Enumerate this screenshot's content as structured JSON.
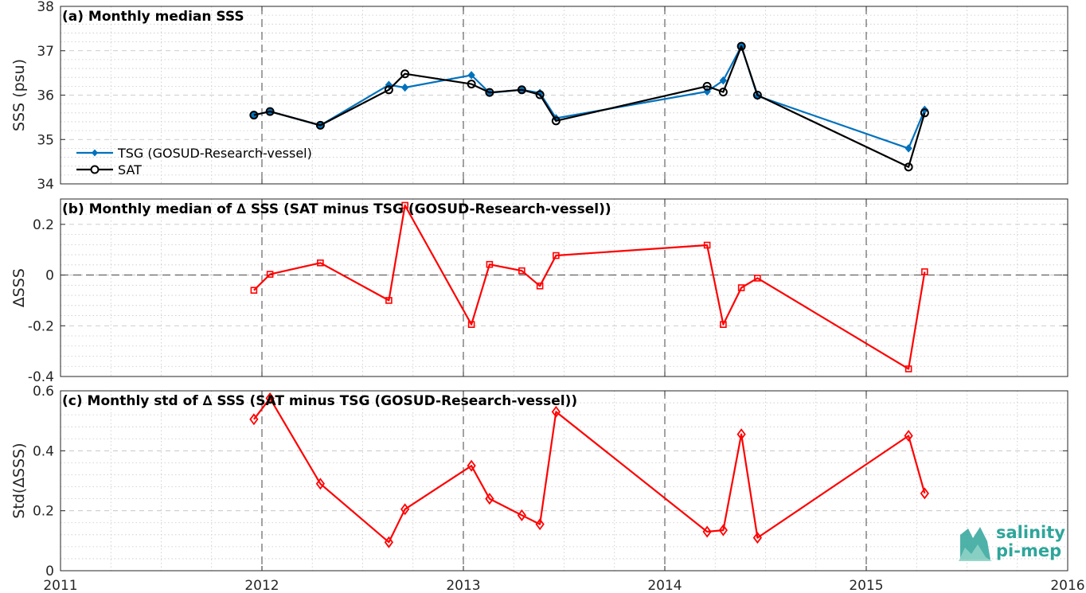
{
  "logo": {
    "line1": "salinity",
    "line2": "pi-mep",
    "color": "#2fa59a"
  },
  "x_ticks": [
    "2011",
    "2012",
    "2013",
    "2014",
    "2015",
    "2016"
  ],
  "chart_data": [
    {
      "type": "line",
      "title": "(a) Monthly median SSS",
      "ylabel": "SSS (psu)",
      "xlim": [
        2011,
        2016
      ],
      "ylim": [
        34,
        38
      ],
      "yticks": [
        34,
        35,
        36,
        37,
        38
      ],
      "ytick_labels": [
        "34",
        "35",
        "36",
        "37",
        "38"
      ],
      "grid": true,
      "legend": "middle-left",
      "series": [
        {
          "name": "TSG (GOSUD-Research-vessel)",
          "color": "#0072BD",
          "marker": "diamond-filled",
          "x": [
            2011.96,
            2012.04,
            2012.29,
            2012.63,
            2012.71,
            2013.04,
            2013.13,
            2013.29,
            2013.38,
            2013.46,
            2014.21,
            2014.29,
            2014.38,
            2014.46,
            2015.21,
            2015.29
          ],
          "y": [
            35.55,
            35.63,
            35.32,
            36.23,
            36.17,
            36.45,
            36.05,
            36.12,
            36.05,
            35.48,
            36.08,
            36.33,
            37.1,
            35.98,
            34.8,
            35.67
          ]
        },
        {
          "name": "SAT",
          "color": "#000000",
          "marker": "circle-open",
          "x": [
            2011.96,
            2012.04,
            2012.29,
            2012.63,
            2012.71,
            2013.04,
            2013.13,
            2013.29,
            2013.38,
            2013.46,
            2014.21,
            2014.29,
            2014.38,
            2014.46,
            2015.21,
            2015.29
          ],
          "y": [
            35.55,
            35.63,
            35.32,
            36.12,
            36.48,
            36.25,
            36.06,
            36.12,
            36.01,
            35.42,
            36.2,
            36.07,
            37.1,
            36.0,
            34.38,
            35.6
          ]
        }
      ]
    },
    {
      "type": "line",
      "title": "(b) Monthly median of ∆ SSS (SAT minus TSG (GOSUD-Research-vessel))",
      "ylabel": "∆SSS",
      "xlim": [
        2011,
        2016
      ],
      "ylim": [
        -0.4,
        0.3
      ],
      "yticks": [
        -0.4,
        -0.2,
        0,
        0.2
      ],
      "ytick_labels": [
        "-0.4",
        "-0.2",
        "0",
        "0.2"
      ],
      "grid": true,
      "reference_line": 0,
      "series": [
        {
          "color": "#ff0000",
          "marker": "square-open",
          "x": [
            2011.96,
            2012.04,
            2012.29,
            2012.63,
            2012.71,
            2013.04,
            2013.13,
            2013.29,
            2013.38,
            2013.46,
            2014.21,
            2014.29,
            2014.38,
            2014.46,
            2015.21,
            2015.29
          ],
          "y": [
            -0.06,
            0.003,
            0.048,
            -0.1,
            0.275,
            -0.195,
            0.042,
            0.017,
            -0.043,
            0.077,
            0.118,
            -0.195,
            -0.05,
            -0.012,
            -0.37,
            0.013
          ]
        }
      ]
    },
    {
      "type": "line",
      "title": "(c) Monthly std of ∆ SSS (SAT minus TSG (GOSUD-Research-vessel))",
      "ylabel": "Std(∆SSS)",
      "xlim": [
        2011,
        2016
      ],
      "ylim": [
        0,
        0.6
      ],
      "yticks": [
        0,
        0.2,
        0.4,
        0.6
      ],
      "ytick_labels": [
        "0",
        "0.2",
        "0.4",
        "0.6"
      ],
      "grid": true,
      "series": [
        {
          "color": "#ff0000",
          "marker": "diamond-open",
          "x": [
            2011.96,
            2012.04,
            2012.29,
            2012.63,
            2012.71,
            2013.04,
            2013.13,
            2013.29,
            2013.38,
            2013.46,
            2014.21,
            2014.29,
            2014.38,
            2014.46,
            2015.21,
            2015.29
          ],
          "y": [
            0.505,
            0.575,
            0.29,
            0.095,
            0.205,
            0.35,
            0.24,
            0.185,
            0.155,
            0.53,
            0.13,
            0.135,
            0.455,
            0.11,
            0.45,
            0.258
          ]
        }
      ]
    }
  ]
}
